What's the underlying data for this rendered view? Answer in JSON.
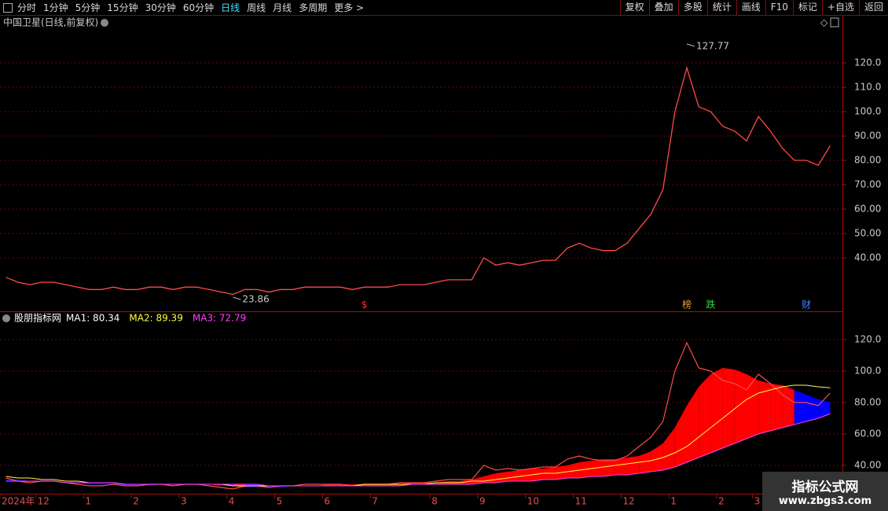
{
  "toolbar": {
    "periods": [
      "分时",
      "1分钟",
      "5分钟",
      "15分钟",
      "30分钟",
      "60分钟",
      "日线",
      "周线",
      "月线",
      "多周期",
      "更多 >"
    ],
    "active_period": 6,
    "actions": [
      "复权",
      "叠加",
      "多股",
      "统计",
      "画线",
      "F10",
      "标记",
      "+自选",
      "返回"
    ]
  },
  "watermark": {
    "title": "指标公式网",
    "url": "www.zbgs3.com"
  },
  "chart_data": [
    {
      "type": "line",
      "title": "中国卫星(日线,前复权)",
      "color": "#ff4a4a",
      "values": [
        32,
        30,
        29,
        30,
        30,
        29,
        28,
        27,
        27,
        28,
        27,
        27,
        28,
        28,
        27,
        28,
        28,
        27,
        26,
        25,
        27,
        27,
        26,
        27,
        27,
        28,
        28,
        28,
        28,
        27,
        28,
        28,
        28,
        29,
        29,
        29,
        30,
        31,
        31,
        31,
        40,
        37,
        38,
        37,
        38,
        39,
        39,
        44,
        46,
        44,
        43,
        43,
        46,
        52,
        58,
        68,
        100,
        118,
        102,
        100,
        94,
        92,
        88,
        98,
        92,
        85,
        80,
        80,
        78,
        86
      ],
      "ylim": [
        18.4,
        134.2
      ],
      "yticks": [
        {
          "value": 40,
          "label": "40.00"
        },
        {
          "value": 50,
          "label": "50.00"
        },
        {
          "value": 60,
          "label": "60.00"
        },
        {
          "value": 70,
          "label": "70.00"
        },
        {
          "value": 80,
          "label": "80.00"
        },
        {
          "value": 90,
          "label": "90.00"
        },
        {
          "value": 100,
          "label": "100.0"
        },
        {
          "value": 110,
          "label": "110.0"
        },
        {
          "value": 120,
          "label": "120.0"
        }
      ],
      "grid": true,
      "annotations": [
        {
          "text": "127.77",
          "value": 127.77,
          "x": 57
        },
        {
          "text": "23.86",
          "value": 23.86,
          "x": 19
        }
      ],
      "events": [
        {
          "text": "$",
          "x": 30,
          "color": "#ff3030"
        },
        {
          "text": "榜",
          "x": 57,
          "color": "#e0a040"
        },
        {
          "text": "跌",
          "x": 59,
          "color": "#40d040"
        },
        {
          "text": "财",
          "x": 67,
          "color": "#4080ff"
        }
      ]
    },
    {
      "type": "band",
      "title": "股朋指标网",
      "categories": [
        "2024年",
        null,
        null,
        "12",
        null,
        null,
        null,
        "1",
        null,
        null,
        null,
        "2",
        null,
        null,
        null,
        "3",
        null,
        null,
        null,
        "4",
        null,
        null,
        null,
        "5",
        null,
        null,
        null,
        "6",
        null,
        null,
        null,
        "7",
        null,
        null,
        null,
        null,
        "8",
        null,
        null,
        null,
        "9",
        null,
        null,
        null,
        "10",
        null,
        null,
        null,
        "11",
        null,
        null,
        null,
        "12",
        null,
        null,
        null,
        "1",
        null,
        null,
        null,
        "2",
        null,
        null,
        "3",
        null,
        null,
        null,
        null,
        null,
        null
      ],
      "series": [
        {
          "name": "MA1: 80.34",
          "color": "#ffffff",
          "values": [
            31,
            31,
            30,
            30,
            30,
            29,
            29,
            28,
            28,
            28,
            27,
            27,
            27,
            28,
            28,
            28,
            28,
            28,
            27,
            27,
            26,
            26,
            26,
            26,
            27,
            27,
            27,
            28,
            28,
            28,
            28,
            28,
            28,
            28,
            29,
            29,
            29,
            30,
            30,
            31,
            33,
            35,
            36,
            37,
            38,
            38,
            39,
            40,
            42,
            43,
            44,
            44,
            45,
            46,
            49,
            54,
            64,
            78,
            90,
            98,
            102,
            101,
            98,
            94,
            92,
            91,
            88,
            85,
            82,
            80.34
          ]
        },
        {
          "name": "MA2: 89.39",
          "color": "#ffff40",
          "values": [
            33,
            32,
            32,
            31,
            31,
            30,
            30,
            29,
            29,
            29,
            28,
            28,
            28,
            28,
            28,
            28,
            28,
            28,
            28,
            27,
            27,
            27,
            27,
            27,
            27,
            27,
            27,
            27,
            27,
            27,
            28,
            28,
            28,
            28,
            28,
            28,
            29,
            29,
            29,
            30,
            30,
            31,
            32,
            33,
            34,
            35,
            35,
            36,
            37,
            38,
            39,
            40,
            41,
            42,
            43,
            45,
            48,
            52,
            58,
            64,
            70,
            76,
            82,
            86,
            88,
            90,
            91,
            91,
            90,
            89.39
          ]
        },
        {
          "name": "MA3: 72.79",
          "color": "#ff40ff",
          "values": [
            30,
            30,
            30,
            30,
            30,
            29,
            29,
            29,
            29,
            29,
            28,
            28,
            28,
            28,
            28,
            28,
            28,
            28,
            28,
            28,
            28,
            28,
            27,
            27,
            27,
            27,
            27,
            27,
            27,
            27,
            27,
            27,
            27,
            27,
            28,
            28,
            28,
            28,
            28,
            28,
            29,
            29,
            30,
            30,
            30,
            31,
            31,
            32,
            32,
            33,
            33,
            34,
            34,
            35,
            36,
            37,
            39,
            42,
            45,
            48,
            51,
            54,
            57,
            60,
            62,
            64,
            66,
            68,
            70,
            72.79
          ]
        }
      ],
      "up_color": "#ff0000",
      "down_color": "#0000ff",
      "ylim": [
        22,
        137
      ],
      "yticks": [
        {
          "value": 40,
          "label": "40.00"
        },
        {
          "value": 60,
          "label": "60.00"
        },
        {
          "value": 80,
          "label": "80.00"
        },
        {
          "value": 100,
          "label": "100.0"
        },
        {
          "value": 120,
          "label": "120.0"
        }
      ],
      "grid": true
    }
  ]
}
